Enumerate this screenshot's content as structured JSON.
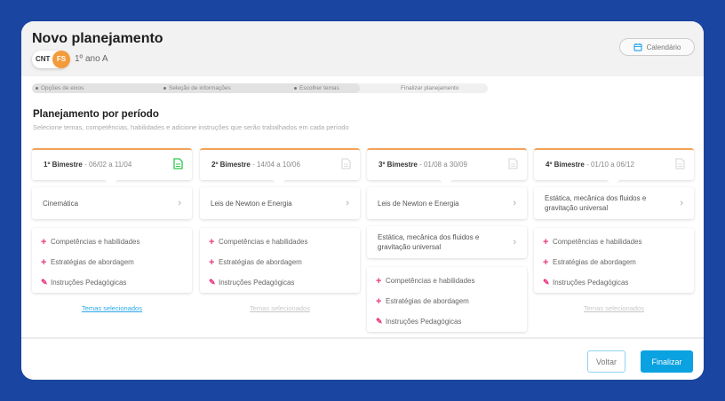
{
  "header": {
    "title": "Novo planejamento",
    "subject": "CNT",
    "teacher_initials": "FS",
    "grade": "1º ano A",
    "calendar_label": "Calendário"
  },
  "stepper": {
    "steps": [
      "Opções de eixos",
      "Seleção de informações",
      "Escolher temas",
      "Finalizar planejamento"
    ],
    "current": "Finalizar planejamento"
  },
  "section": {
    "title": "Planejamento por período",
    "subtitle": "Selecione temas, competências, habilidades e adicione instruções que serão trabalhados em cada período"
  },
  "periods": [
    {
      "name": "1º Bimestre",
      "dates": " - 06/02 a 11/04",
      "doc_status": "complete",
      "themes": [
        "Cinemática"
      ],
      "actions": [
        "Competências e habilidades",
        "Estratégias de abordagem",
        "Instruções Pedagógicas"
      ],
      "link": "Temas selecionados",
      "link_active": true
    },
    {
      "name": "2º Bimestre",
      "dates": " - 14/04 a 10/06",
      "doc_status": "empty",
      "themes": [
        "Leis de Newton e Energia"
      ],
      "actions": [
        "Competências e habilidades",
        "Estratégias de abordagem",
        "Instruções Pedagógicas"
      ],
      "link": "Temas selecionados",
      "link_active": false
    },
    {
      "name": "3º Bimestre",
      "dates": " - 01/08 a 30/09",
      "doc_status": "empty",
      "themes": [
        "Leis de Newton e Energia",
        "Estática, mecânica dos fluidos e gravitação universal"
      ],
      "actions": [
        "Competências e habilidades",
        "Estratégias de abordagem",
        "Instruções Pedagógicas"
      ]
    },
    {
      "name": "4º Bimestre",
      "dates": " - 01/10 a 06/12",
      "doc_status": "empty",
      "themes": [
        "Estática, mecânica dos fluidos e gravitação universal"
      ],
      "actions": [
        "Competências e habilidades",
        "Estratégias de abordagem",
        "Instruções Pedagógicas"
      ],
      "link": "Temas selecionados",
      "link_active": false
    }
  ],
  "footer": {
    "back_label": "Voltar",
    "finish_label": "Finalizar"
  },
  "colors": {
    "accent": "#0aa2e0",
    "period_border": "#f5a25a",
    "action_icon": "#e9377f",
    "doc_complete": "#2ec84a",
    "background": "#1a45a0"
  }
}
